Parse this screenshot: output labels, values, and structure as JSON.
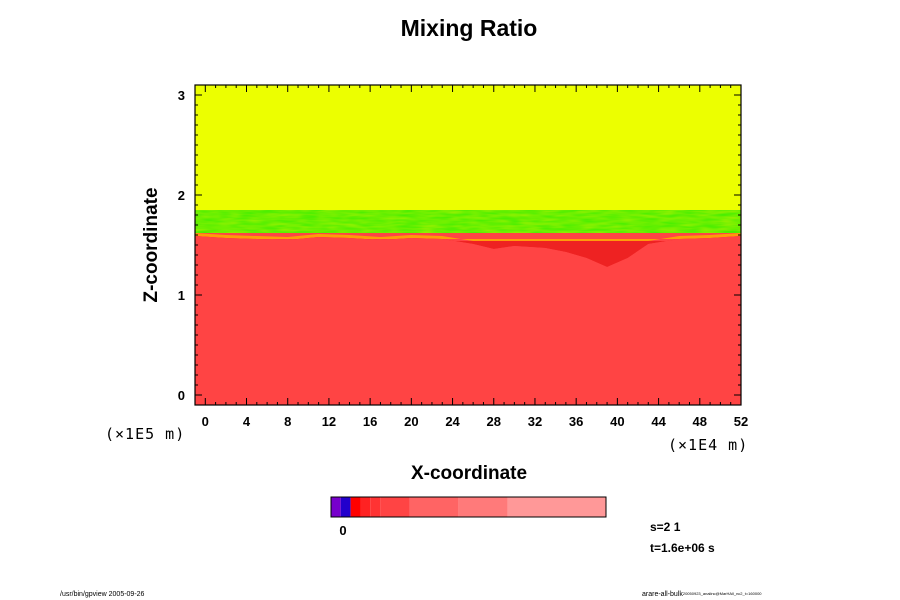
{
  "chart_data": {
    "type": "heatmap",
    "title": "Mixing Ratio",
    "xlabel": "X-coordinate",
    "ylabel": "Z-coordinate",
    "x_unit": "(×1E4 m)",
    "y_unit": "(×1E5 m)",
    "xlim": [
      -1,
      52
    ],
    "ylim": [
      -0.1,
      3.1
    ],
    "xticks": [
      "0",
      "4",
      "8",
      "12",
      "16",
      "20",
      "24",
      "28",
      "32",
      "36",
      "40",
      "44",
      "48",
      "52"
    ],
    "xtick_values": [
      0,
      4,
      8,
      12,
      16,
      20,
      24,
      28,
      32,
      36,
      40,
      44,
      48,
      52
    ],
    "yticks": [
      "0",
      "1",
      "2",
      "3"
    ],
    "ytick_values": [
      0,
      1,
      2,
      3
    ],
    "layers": [
      {
        "name": "upper",
        "z_from": 1.85,
        "z_to": 3.1,
        "color": "#ecff00"
      },
      {
        "name": "transition",
        "z_from": 1.62,
        "z_to": 1.85,
        "color": "#33ee00"
      },
      {
        "name": "lower",
        "z_from": -0.1,
        "z_to": 1.62,
        "color": "#ff4444"
      }
    ],
    "interface_height": [
      [
        -1,
        1.6
      ],
      [
        2,
        1.58
      ],
      [
        5,
        1.57
      ],
      [
        8,
        1.56
      ],
      [
        11,
        1.59
      ],
      [
        14,
        1.58
      ],
      [
        17,
        1.56
      ],
      [
        20,
        1.58
      ],
      [
        23,
        1.57
      ],
      [
        26,
        1.52
      ],
      [
        28,
        1.47
      ],
      [
        30,
        1.5
      ],
      [
        33,
        1.48
      ],
      [
        35,
        1.44
      ],
      [
        37,
        1.38
      ],
      [
        39,
        1.29
      ],
      [
        41,
        1.38
      ],
      [
        43,
        1.52
      ],
      [
        46,
        1.57
      ],
      [
        49,
        1.58
      ],
      [
        52,
        1.6
      ]
    ],
    "colorbar": {
      "tick_label": "0",
      "segments": [
        {
          "color": "#7700cc",
          "width": 1
        },
        {
          "color": "#2200cc",
          "width": 1
        },
        {
          "color": "#ff0000",
          "width": 1
        },
        {
          "color": "#ff2222",
          "width": 1
        },
        {
          "color": "#ff3333",
          "width": 1
        },
        {
          "color": "#ff4444",
          "width": 3
        },
        {
          "color": "#ff6464",
          "width": 5
        },
        {
          "color": "#ff7a7a",
          "width": 5
        },
        {
          "color": "#ff9898",
          "width": 10
        }
      ]
    }
  },
  "info": {
    "s_label": "s=2 1",
    "t_label": "t=1.6e+06 s"
  },
  "footer": {
    "left": "/usr/bin/gpview 2005-09-26",
    "right_main": "arare-all-bulk",
    "right_small": "20050923_analinc@MarHAll_nc2_t=160000"
  }
}
